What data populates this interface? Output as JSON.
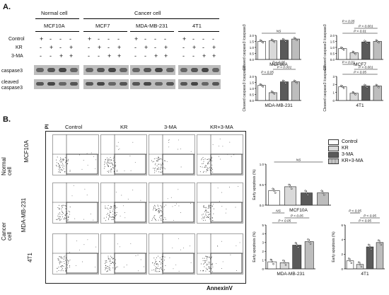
{
  "panelA": {
    "letter": "A.",
    "normal_header": "Normal cell",
    "cancer_header": "Cancer cell",
    "cells": [
      "MCF10A",
      "MCF7",
      "MDA-MB-231",
      "4T1"
    ],
    "row_labels": [
      "Control",
      "KR",
      "3-MA"
    ],
    "signs": {
      "Control": [
        "+",
        "-",
        "-",
        "-"
      ],
      "KR": [
        "-",
        "+",
        "-",
        "+"
      ],
      "3-MA": [
        "-",
        "-",
        "+",
        "+"
      ]
    },
    "blot_labels": [
      "caspase3",
      "cleaved\ncaspase3"
    ]
  },
  "panelB": {
    "letter": "B.",
    "column_headers": [
      "Control",
      "KR",
      "3-MA",
      "KR+3-MA"
    ],
    "y_axis_letter": "PI",
    "x_axis_label": "AnnexinV",
    "normal_group": "Normal\ncell",
    "cancer_group": "Cancer\ncell",
    "row_cells": [
      "MCF10A",
      "MDA-MB-231",
      "4T1"
    ]
  },
  "legend": {
    "items": [
      {
        "label": "Control",
        "color": "#ffffff"
      },
      {
        "label": "KR",
        "color": "#d9d9d9"
      },
      {
        "label": "3-MA",
        "color": "#5a5a5a"
      },
      {
        "label": "KR+3-MA",
        "color": "#bdbdbd"
      }
    ]
  },
  "chart_data": [
    {
      "type": "bar",
      "title": "MCF10A",
      "ylabel": "Cleaved caspase3 /caspase3",
      "categories": [
        "Control",
        "KR",
        "3-MA",
        "KR+3-MA"
      ],
      "values": [
        1.5,
        1.55,
        1.6,
        1.7
      ],
      "ylim": [
        0,
        2.0
      ],
      "yticks": [
        "0.0",
        "0.5",
        "1.0",
        "1.5",
        "2.0"
      ],
      "annotations": [
        "NS"
      ]
    },
    {
      "type": "bar",
      "title": "MCF7",
      "ylabel": "Cleaved caspase3 /caspase3",
      "categories": [
        "Control",
        "KR",
        "3-MA",
        "KR+3-MA"
      ],
      "values": [
        0.9,
        0.55,
        1.45,
        1.5
      ],
      "ylim": [
        0,
        2.0
      ],
      "yticks": [
        "0.0",
        "0.5",
        "1.0",
        "1.5",
        "2.0"
      ],
      "annotations": [
        "P < 0.01",
        "P < 0.001",
        "P < 0.05"
      ]
    },
    {
      "type": "bar",
      "title": "MDA-MB-231",
      "ylabel": "Cleaved caspase3 /caspase3",
      "categories": [
        "Control",
        "KR",
        "3-MA",
        "KR+3-MA"
      ],
      "values": [
        1.25,
        0.65,
        1.55,
        1.55
      ],
      "ylim": [
        0,
        2.0
      ],
      "yticks": [
        "0.0",
        "0.5",
        "1.0",
        "1.5",
        "2.0"
      ],
      "annotations": [
        "P < 0.05",
        "P < 0.001",
        "P < 0.05"
      ]
    },
    {
      "type": "bar",
      "title": "4T1",
      "ylabel": "Cleaved caspase3 /caspase3",
      "categories": [
        "Control",
        "KR",
        "3-MA",
        "KR+3-MA"
      ],
      "values": [
        1.7,
        0.9,
        1.8,
        1.8
      ],
      "ylim": [
        0,
        3
      ],
      "yticks": [
        "0",
        "1",
        "2",
        "3"
      ],
      "annotations": [
        "P < 0.05",
        "P < 0.01",
        "P < 0.001"
      ]
    },
    {
      "type": "bar",
      "title": "MCF10A",
      "ylabel": "Early apoptosis (%)",
      "categories": [
        "Control",
        "KR",
        "3-MA",
        "KR+3-MA"
      ],
      "values": [
        0.35,
        0.45,
        0.3,
        0.3
      ],
      "ylim": [
        0,
        1.0
      ],
      "yticks": [
        "0.0",
        "0.5",
        "1.0"
      ],
      "annotations": [
        "NS"
      ]
    },
    {
      "type": "bar",
      "title": "MDA-MB-231",
      "ylabel": "Early apoptosis (%)",
      "categories": [
        "Control",
        "KR",
        "3-MA",
        "KR+3-MA"
      ],
      "values": [
        0.8,
        0.7,
        2.7,
        3.1
      ],
      "ylim": [
        0,
        5
      ],
      "yticks": [
        "0",
        "1",
        "2",
        "3",
        "4",
        "5"
      ],
      "annotations": [
        "P < 0.05",
        "P < 0.05",
        "NS"
      ]
    },
    {
      "type": "bar",
      "title": "4T1",
      "ylabel": "Early apoptosis (%)",
      "categories": [
        "Control",
        "KR",
        "3-MA",
        "KR+3-MA"
      ],
      "values": [
        1.1,
        0.6,
        3.0,
        3.6
      ],
      "ylim": [
        0,
        6
      ],
      "yticks": [
        "0",
        "2",
        "4",
        "6"
      ],
      "annotations": [
        "P < 0.05",
        "P < 0.05",
        "P < 0.05"
      ]
    }
  ]
}
